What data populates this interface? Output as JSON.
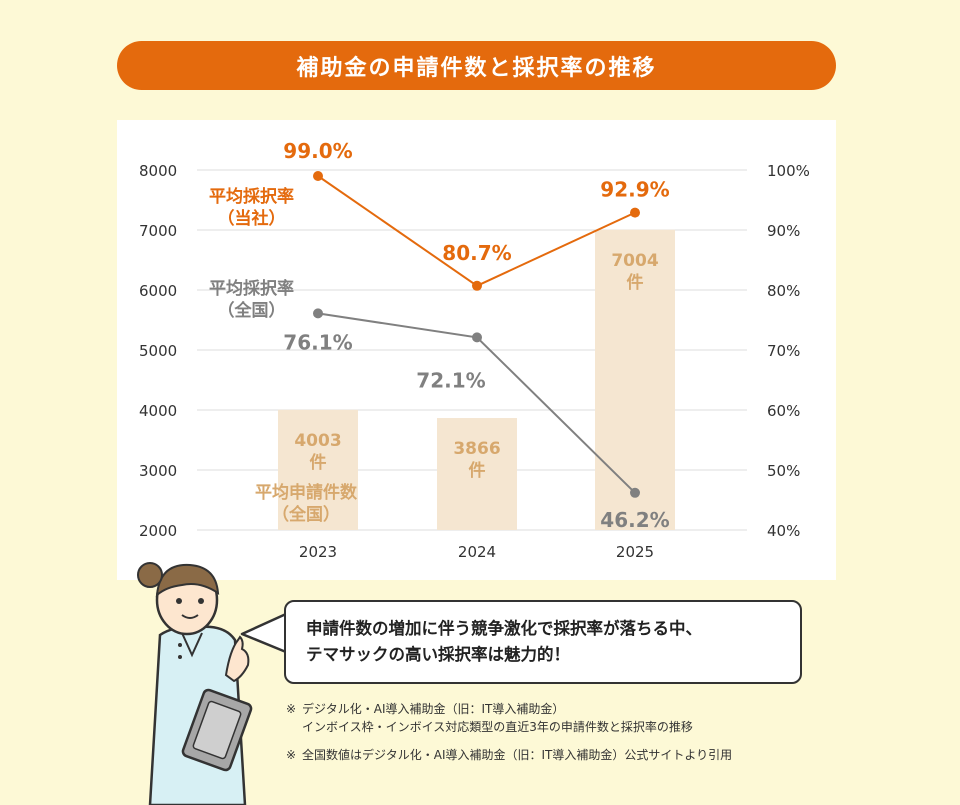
{
  "title": "補助金の申請件数と採択率の推移",
  "colors": {
    "title_bg": "#e46a0d",
    "company_rate": "#e46a0d",
    "national_rate": "#808080",
    "bars": "#f5e6d1",
    "bar_text": "#d7a86d"
  },
  "chart_data": {
    "type": "bar",
    "categories": [
      "2023",
      "2024",
      "2025"
    ],
    "y_left": {
      "ylim": [
        2000,
        8000
      ],
      "ticks": [
        "8000",
        "7000",
        "6000",
        "5000",
        "4000",
        "3000",
        "2000"
      ]
    },
    "y_right": {
      "ylim": [
        40,
        100
      ],
      "ticks": [
        "100%",
        "90%",
        "80%",
        "70%",
        "60%",
        "50%",
        "40%"
      ]
    },
    "bars": {
      "name": "平均申請件数\n（全国）",
      "values": [
        4003,
        3866,
        7004
      ],
      "labels": [
        "4003\n件",
        "3866\n件",
        "7004\n件"
      ]
    },
    "series": [
      {
        "name": "平均採択率\n（当社）",
        "values": [
          99.0,
          80.7,
          92.9
        ],
        "labels": [
          "99.0%",
          "80.7%",
          "92.9%"
        ]
      },
      {
        "name": "平均採択率\n（全国）",
        "values": [
          76.1,
          72.1,
          46.2
        ],
        "labels": [
          "76.1%",
          "72.1%",
          "46.2%"
        ]
      }
    ],
    "grid": true
  },
  "bubble": {
    "line1": "申請件数の増加に伴う競争激化で採択率が落ちる中、",
    "line2": "テマサックの高い採択率は魅力的！"
  },
  "notes": [
    {
      "mark": "※",
      "lines": [
        "デジタル化・AI導入補助金（旧：IT導入補助金）",
        "インボイス枠・インボイス対応類型の直近3年の申請件数と採択率の推移"
      ]
    },
    {
      "mark": "※",
      "lines": [
        "全国数値はデジタル化・AI導入補助金（旧：IT導入補助金）公式サイトより引用"
      ]
    }
  ]
}
